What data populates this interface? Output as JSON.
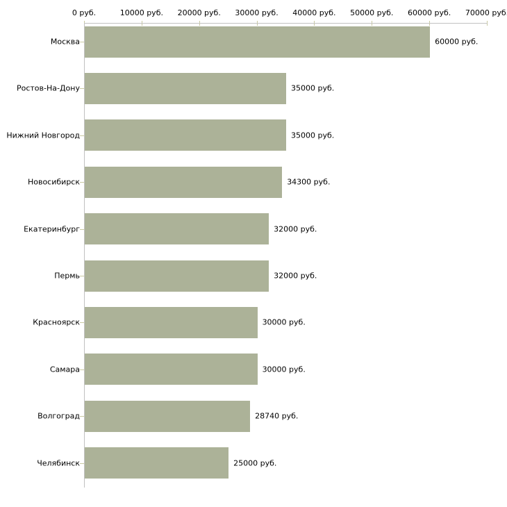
{
  "chart_data": {
    "type": "bar",
    "orientation": "horizontal",
    "title": "",
    "xlabel": "",
    "ylabel": "",
    "grid": false,
    "legend": null,
    "categories": [
      "Москва",
      "Ростов-На-Дону",
      "Нижний Новгород",
      "Новосибирск",
      "Екатеринбург",
      "Пермь",
      "Красноярск",
      "Самара",
      "Волгоград",
      "Челябинск"
    ],
    "values": [
      60000,
      35000,
      35000,
      34300,
      32000,
      32000,
      30000,
      30000,
      28740,
      25000
    ],
    "value_labels": [
      "60000 руб.",
      "35000 руб.",
      "35000 руб.",
      "34300 руб.",
      "32000 руб.",
      "32000 руб.",
      "30000 руб.",
      "30000 руб.",
      "28740 руб.",
      "25000 руб."
    ],
    "x_ticks": [
      0,
      10000,
      20000,
      30000,
      40000,
      50000,
      60000,
      70000
    ],
    "x_tick_labels": [
      "0 руб.",
      "10000 руб.",
      "20000 руб.",
      "30000 руб.",
      "40000 руб.",
      "50000 руб.",
      "60000 руб.",
      "70000 руб."
    ],
    "xlim": [
      0,
      70000
    ],
    "colors": {
      "bar_fill": "#acb298",
      "axis_line": "#c1c1c1",
      "tick_mark": "#c9c9a0",
      "text": "#000000",
      "background": "#ffffff"
    }
  }
}
